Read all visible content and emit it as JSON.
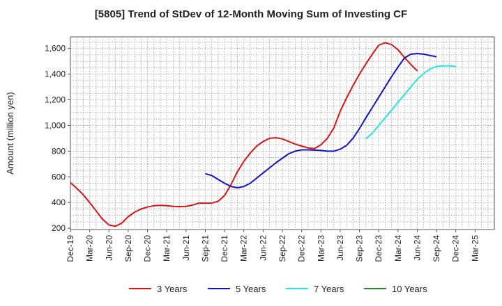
{
  "chart_data": {
    "type": "line",
    "title": "[5805]  Trend of StDev of 12-Month Moving Sum of Investing CF",
    "xlabel": "",
    "ylabel": "Amount (million yen)",
    "ylim": [
      190,
      1690
    ],
    "yticks": [
      200,
      400,
      600,
      800,
      1000,
      1200,
      1400,
      1600
    ],
    "ytick_labels": [
      "200",
      "400",
      "600",
      "800",
      "1,000",
      "1,200",
      "1,400",
      "1,600"
    ],
    "xtick_labels": [
      "Dec-19",
      "Mar-20",
      "Jun-20",
      "Sep-20",
      "Dec-20",
      "Mar-21",
      "Jun-21",
      "Sep-21",
      "Dec-21",
      "Mar-22",
      "Jun-22",
      "Sep-22",
      "Dec-22",
      "Mar-23",
      "Jun-23",
      "Sep-23",
      "Dec-23",
      "Mar-24",
      "Jun-24",
      "Sep-24",
      "Dec-24",
      "Mar-25"
    ],
    "grid": true,
    "legend_position": "bottom",
    "series": [
      {
        "name": "3 Years",
        "color": "#dd1111",
        "start_index": 0,
        "values": [
          555,
          510,
          460,
          400,
          335,
          270,
          225,
          215,
          240,
          290,
          325,
          350,
          365,
          375,
          378,
          375,
          370,
          368,
          370,
          380,
          395,
          395,
          395,
          410,
          455,
          540,
          640,
          720,
          785,
          840,
          875,
          900,
          905,
          895,
          875,
          855,
          840,
          825,
          820,
          850,
          900,
          980,
          1110,
          1215,
          1310,
          1400,
          1480,
          1555,
          1625,
          1645,
          1630,
          1590,
          1530,
          1475,
          1425
        ]
      },
      {
        "name": "5 Years",
        "color": "#1111cc",
        "start_index": 21,
        "values": [
          625,
          610,
          580,
          550,
          525,
          515,
          525,
          550,
          590,
          630,
          670,
          710,
          745,
          780,
          800,
          810,
          810,
          808,
          805,
          800,
          800,
          815,
          845,
          900,
          975,
          1060,
          1140,
          1220,
          1300,
          1380,
          1455,
          1525,
          1555,
          1560,
          1555,
          1545,
          1535
        ]
      },
      {
        "name": "7 Years",
        "color": "#22e5e5",
        "start_index": 46,
        "values": [
          895,
          940,
          1000,
          1060,
          1120,
          1180,
          1240,
          1300,
          1360,
          1405,
          1440,
          1460,
          1465,
          1465,
          1460
        ]
      },
      {
        "name": "10 Years",
        "color": "#228822",
        "start_index": 0,
        "values": []
      }
    ]
  }
}
